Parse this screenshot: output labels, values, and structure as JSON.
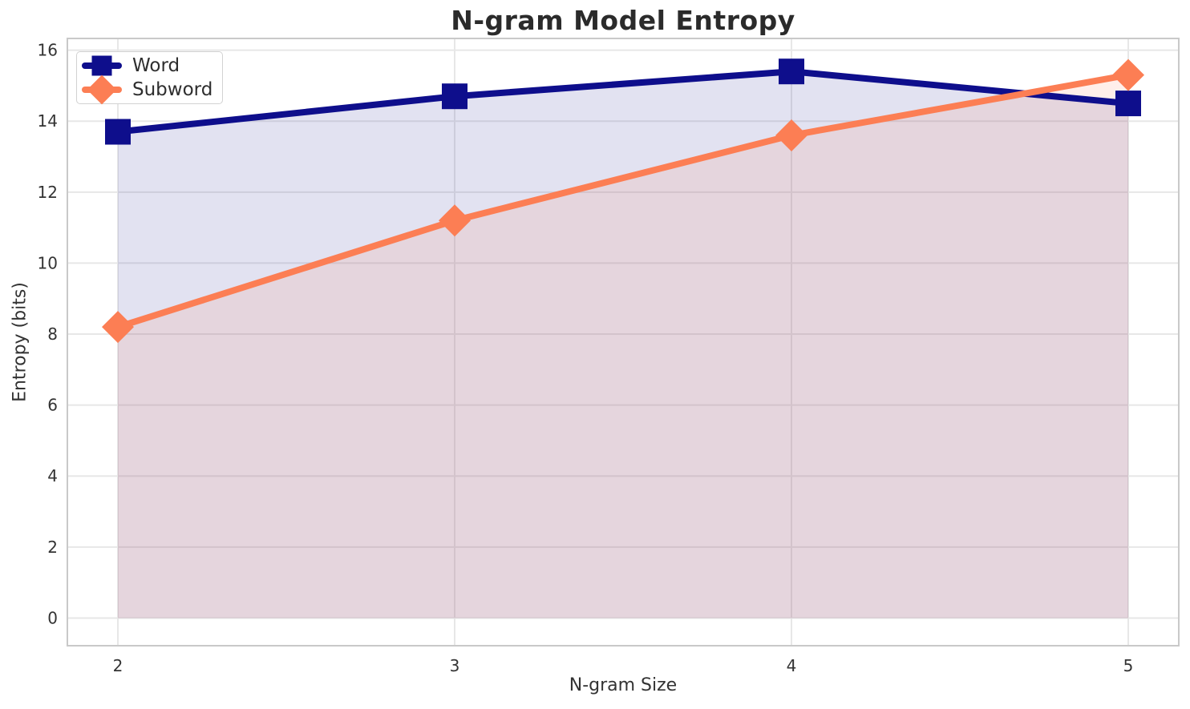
{
  "chart_data": {
    "type": "line",
    "title": "N-gram Model Entropy",
    "xlabel": "N-gram Size",
    "ylabel": "Entropy (bits)",
    "x": [
      2,
      3,
      4,
      5
    ],
    "series": [
      {
        "name": "Word",
        "color": "#0e0e8c",
        "marker": "square",
        "values": [
          13.7,
          14.7,
          15.4,
          14.5
        ],
        "fill_to_zero": true
      },
      {
        "name": "Subword",
        "color": "#fc7e54",
        "marker": "diamond",
        "values": [
          8.2,
          11.2,
          13.6,
          15.3
        ],
        "fill_to_zero": true
      }
    ],
    "fill_alpha": 0.12,
    "xticks": [
      2,
      3,
      4,
      5
    ],
    "yticks": [
      0,
      2,
      4,
      6,
      8,
      10,
      12,
      14,
      16
    ],
    "xlim": [
      1.85,
      5.15
    ],
    "ylim": [
      -0.78,
      16.33
    ],
    "grid": true,
    "legend_position": "upper left"
  },
  "colors": {
    "background": "#ffffff",
    "grid": "#e7e7e7",
    "spine": "#c9c9c9",
    "tick_text": "#333333",
    "title_text": "#2b2b2b",
    "legend_border": "#d2d2d2",
    "legend_background": "#ffffff"
  }
}
